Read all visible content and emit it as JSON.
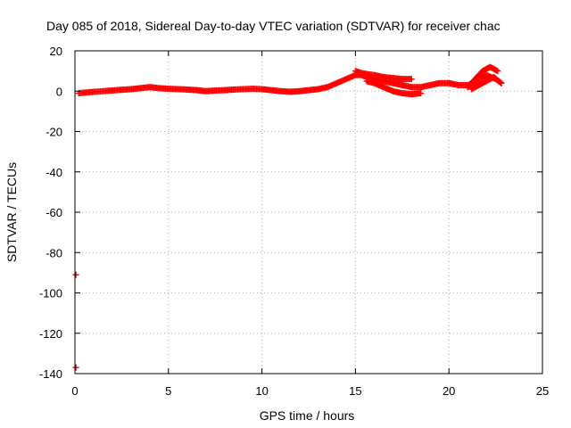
{
  "chart_data": {
    "type": "scatter",
    "title": "Day 085 of 2018, Sidereal Day-to-day VTEC variation (SDTVAR) for receiver chac",
    "xlabel": "GPS time / hours",
    "ylabel": "SDTVAR / TECUs",
    "xlim": [
      0,
      25
    ],
    "ylim": [
      -140,
      20
    ],
    "xticks": [
      "0",
      "5",
      "10",
      "15",
      "20",
      "25"
    ],
    "yticks": [
      "20",
      "0",
      "-20",
      "-40",
      "-60",
      "-80",
      "-100",
      "-120",
      "-140"
    ],
    "grid": true,
    "legend": "none",
    "series": [
      {
        "color": "#ff0000",
        "marker": "plus",
        "x": [
          0.2,
          0.8,
          1.5,
          2.2,
          3.0,
          3.5,
          4.0,
          4.5,
          5.0,
          5.5,
          6.0,
          6.5,
          7.0,
          7.5,
          8.0,
          8.5,
          9.0,
          9.5,
          10.0,
          10.5,
          11.0,
          11.5,
          12.0,
          12.5,
          13.0,
          13.5,
          14.0,
          14.5,
          15.0,
          15.3,
          15.6,
          16.0,
          16.5,
          17.0,
          17.5,
          18.0,
          18.5,
          19.0,
          19.5,
          20.0,
          20.5,
          21.0,
          21.5,
          22.0,
          22.5,
          22.8
        ],
        "y": [
          -1,
          -0.5,
          0,
          0.5,
          1,
          1.5,
          2,
          1.5,
          1.2,
          1,
          0.8,
          0.5,
          0,
          0.3,
          0.5,
          0.8,
          1,
          1.2,
          1,
          0.5,
          0,
          -0.3,
          0,
          0.5,
          1,
          2,
          4,
          6,
          8,
          8,
          7,
          6,
          5,
          4,
          3,
          2,
          2,
          3,
          4,
          4,
          3,
          3,
          5,
          8,
          6,
          4
        ]
      },
      {
        "color": "#ff0000",
        "marker": "plus",
        "x": [
          15.0,
          15.3,
          15.6,
          16.0,
          16.5,
          17.0,
          17.5,
          18.0
        ],
        "y": [
          10,
          9,
          8.5,
          8,
          7,
          6.5,
          6,
          6
        ]
      },
      {
        "color": "#ff0000",
        "marker": "plus",
        "x": [
          15.6,
          16.0,
          16.5,
          17.0,
          17.5,
          18.0,
          18.5
        ],
        "y": [
          5,
          4,
          2,
          0,
          -1,
          -1.5,
          -1
        ]
      },
      {
        "color": "#ff0000",
        "marker": "plus",
        "x": [
          21.0,
          21.4,
          21.8,
          22.2,
          22.6
        ],
        "y": [
          2,
          6,
          10,
          12,
          10
        ]
      },
      {
        "color": "#ff0000",
        "marker": "plus",
        "x": [
          21.2,
          21.6,
          22.0,
          22.4,
          22.8
        ],
        "y": [
          1,
          3,
          5,
          7,
          4
        ]
      },
      {
        "color": "#cc0000",
        "marker": "plus",
        "x": [
          0.05,
          0.05
        ],
        "y": [
          -91,
          -137
        ]
      }
    ]
  }
}
